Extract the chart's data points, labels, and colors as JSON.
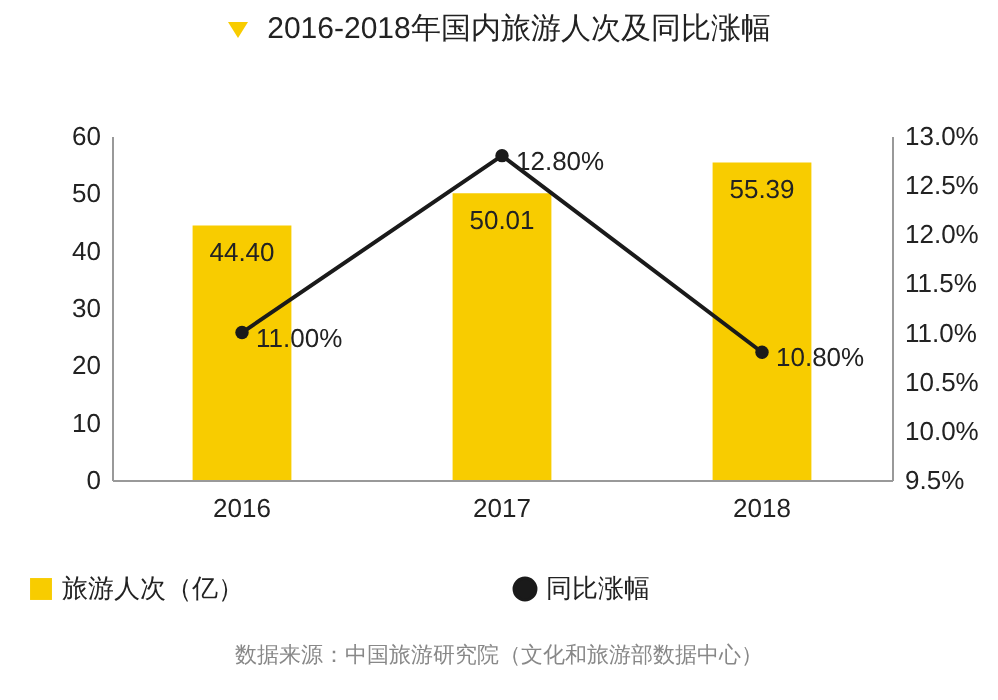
{
  "chart_data": {
    "type": "bar",
    "title": "2016-2018年国内旅游人次及同比涨幅",
    "categories": [
      "2016",
      "2017",
      "2018"
    ],
    "series": [
      {
        "name": "旅游人次（亿）",
        "color": "#f8cc00",
        "values": [
          44.4,
          50.01,
          55.39
        ],
        "value_labels": [
          "44.40",
          "50.01",
          "55.39"
        ]
      },
      {
        "name": "同比涨幅",
        "type": "line",
        "axis": "y2",
        "color": "#1a1a1a",
        "values": [
          11.0,
          12.8,
          10.8
        ],
        "value_labels": [
          "11.00%",
          "12.80%",
          "10.80%"
        ]
      }
    ],
    "ylim": [
      0,
      60
    ],
    "yticks": [
      0,
      10,
      20,
      30,
      40,
      50,
      60
    ],
    "y2lim": [
      9.5,
      13.0
    ],
    "y2ticks": [
      {
        "value": 9.5,
        "label": "9.5%"
      },
      {
        "value": 10,
        "label": "10.0%"
      },
      {
        "value": 10.5,
        "label": "10.5%"
      },
      {
        "value": 11,
        "label": "11.0%"
      },
      {
        "value": 11.5,
        "label": "11.5%"
      },
      {
        "value": 12,
        "label": "12.0%"
      },
      {
        "value": 12.5,
        "label": "12.5%"
      },
      {
        "value": 13,
        "label": "13.0%"
      }
    ],
    "marker": "circle",
    "line_style": "solid",
    "legend": "bottom",
    "annotations": [
      "数据来源：中国旅游研究院（文化和旅游部数据中心）"
    ]
  }
}
